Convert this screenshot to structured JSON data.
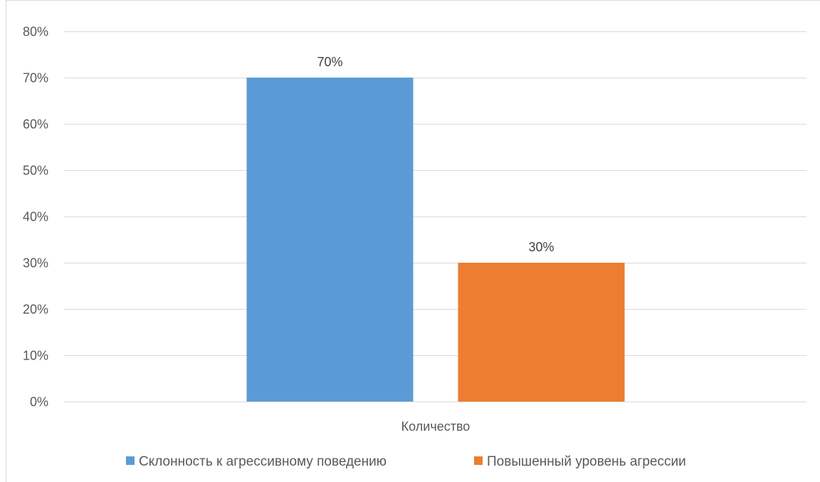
{
  "chart_data": {
    "type": "bar",
    "categories": [
      "Количество"
    ],
    "series": [
      {
        "name": "Склонность к агрессивному поведению",
        "values": [
          70
        ],
        "color": "#5b9bd5",
        "label": "70%"
      },
      {
        "name": "Повышенный уровень агрессии",
        "values": [
          30
        ],
        "color": "#ed7d31",
        "label": "30%"
      }
    ],
    "ylim": [
      0,
      80
    ],
    "ytick_step": 10,
    "ytick_labels": [
      "0%",
      "10%",
      "20%",
      "30%",
      "40%",
      "50%",
      "60%",
      "70%",
      "80%"
    ],
    "grid": true,
    "legend_position": "bottom",
    "title": "",
    "xlabel": "",
    "ylabel": ""
  }
}
